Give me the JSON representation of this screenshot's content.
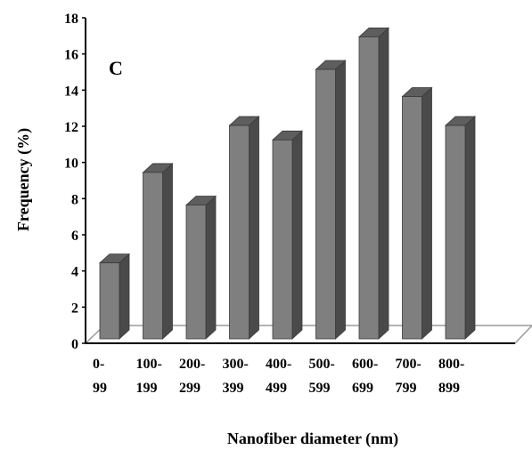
{
  "chart_data": {
    "type": "bar",
    "categories": [
      [
        "0-",
        "99"
      ],
      [
        "100-",
        "199"
      ],
      [
        "200-",
        "299"
      ],
      [
        "300-",
        "399"
      ],
      [
        "400-",
        "499"
      ],
      [
        "500-",
        "599"
      ],
      [
        "600-",
        "699"
      ],
      [
        "700-",
        "799"
      ],
      [
        "800-",
        "899"
      ]
    ],
    "values": [
      4.2,
      9.2,
      7.4,
      11.8,
      11.0,
      14.9,
      16.7,
      13.4,
      11.8
    ],
    "ylim": [
      0,
      18
    ],
    "yticks": [
      0,
      2,
      4,
      6,
      8,
      10,
      12,
      14,
      16,
      18
    ],
    "xlabel": "Nanofiber diameter (nm)",
    "ylabel": "Frequency (%)",
    "annotation": "C",
    "grid": false,
    "legend": "none",
    "colors": {
      "bar_front": "#7f7f7f",
      "bar_side": "#4a4a4a",
      "bar_top": "#5e5e5e",
      "axis": "#000000",
      "floor": "#9a9a9a"
    }
  }
}
